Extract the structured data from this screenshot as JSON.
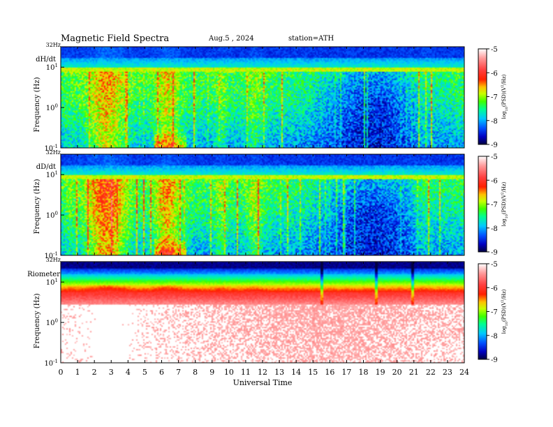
{
  "header": {
    "title": "Magnetic  Field  Spectra",
    "date": "Aug.5  , 2024",
    "station": "station=ATH"
  },
  "colorbar": {
    "label_parts": [
      "log",
      "10",
      "(PSD)(V",
      "2",
      "/Hz)"
    ],
    "ticks": [
      "-5",
      "-6",
      "-7",
      "-8",
      "-9"
    ],
    "colors": [
      "#000040",
      "#0000c0",
      "#0050ff",
      "#00c8ff",
      "#00ff90",
      "#40ff00",
      "#c8ff00",
      "#ffc000",
      "#ff2000",
      "#ff4040",
      "#ff9a9a",
      "#ffffff"
    ]
  },
  "xaxis": {
    "label": "Universal  Time",
    "ticks": [
      "0",
      "1",
      "2",
      "3",
      "4",
      "5",
      "6",
      "7",
      "8",
      "9",
      "10",
      "11",
      "12",
      "13",
      "14",
      "15",
      "16",
      "17",
      "18",
      "19",
      "20",
      "21",
      "22",
      "23",
      "24"
    ]
  },
  "chart_data": [
    {
      "type": "heatmap",
      "panel_label": "dH/dt",
      "ylabel": "Frequency  (Hz)",
      "top_label": "32Hz",
      "yticks": [
        {
          "base": "10",
          "exp": "1"
        },
        {
          "base": "10",
          "exp": "0"
        },
        {
          "base": "10",
          "exp": "-1"
        }
      ],
      "x_range_hours": [
        0,
        24
      ],
      "y_range_hz": [
        0.1,
        32
      ],
      "scale": "log",
      "z_range_log10_psd": [
        -9,
        -5
      ]
    },
    {
      "type": "heatmap",
      "panel_label": "dD/dt",
      "ylabel": "Frequency  (Hz)",
      "top_label": "32Hz",
      "yticks": [
        {
          "base": "10",
          "exp": "1"
        },
        {
          "base": "10",
          "exp": "0"
        },
        {
          "base": "10",
          "exp": "-1"
        }
      ],
      "x_range_hours": [
        0,
        24
      ],
      "y_range_hz": [
        0.1,
        32
      ],
      "scale": "log",
      "z_range_log10_psd": [
        -9,
        -5
      ]
    },
    {
      "type": "heatmap",
      "panel_label": "Riometer",
      "ylabel": "Frequency  (Hz)",
      "top_label": "32Hz",
      "yticks": [
        {
          "base": "10",
          "exp": "1"
        },
        {
          "base": "10",
          "exp": "0"
        },
        {
          "base": "10",
          "exp": "-1"
        }
      ],
      "x_range_hours": [
        0,
        24
      ],
      "y_range_hz": [
        0.1,
        32
      ],
      "scale": "log",
      "z_range_log10_psd": [
        -9,
        -5
      ]
    }
  ]
}
